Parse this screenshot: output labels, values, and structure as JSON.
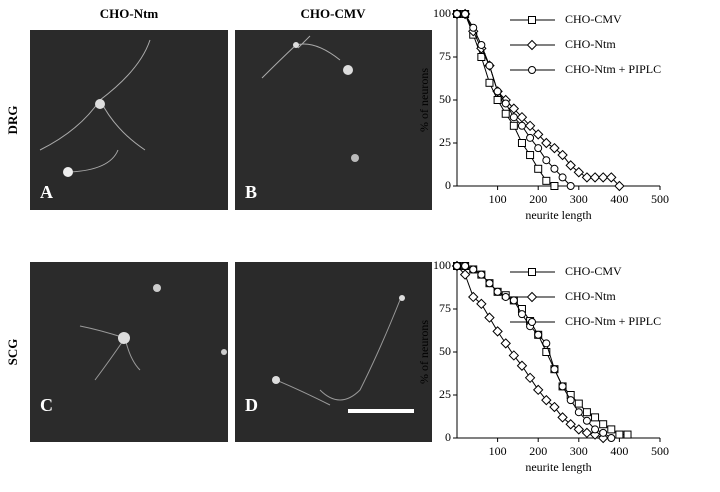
{
  "figure": {
    "column_labels": [
      "CHO-Ntm",
      "CHO-CMV"
    ],
    "row_labels": [
      "DRG",
      "SCG"
    ],
    "panels": [
      {
        "label": "A"
      },
      {
        "label": "B"
      },
      {
        "label": "C"
      },
      {
        "label": "D"
      }
    ]
  },
  "chart_data": [
    {
      "type": "line",
      "xlabel": "neurite length",
      "ylabel": "% of neurons",
      "x": [
        0,
        20,
        40,
        60,
        80,
        100,
        120,
        140,
        160,
        180,
        200,
        220,
        240,
        260,
        280,
        300,
        320,
        340,
        360,
        380,
        400,
        420
      ],
      "xlim": [
        0,
        500
      ],
      "ylim": [
        0,
        100
      ],
      "xticks": [
        100,
        200,
        300,
        400,
        500
      ],
      "yticks": [
        0,
        25,
        50,
        75,
        100
      ],
      "series": [
        {
          "name": "CHO-CMV",
          "color": "#000000",
          "marker": "square",
          "values": [
            100,
            100,
            88,
            75,
            60,
            50,
            42,
            35,
            25,
            18,
            10,
            3,
            0,
            null,
            null,
            null,
            null,
            null,
            null,
            null,
            null,
            null
          ]
        },
        {
          "name": "CHO-Ntm",
          "color": "#000000",
          "marker": "diamond",
          "values": [
            100,
            100,
            90,
            80,
            70,
            55,
            50,
            45,
            40,
            35,
            30,
            25,
            22,
            18,
            12,
            8,
            5,
            5,
            5,
            5,
            0,
            null
          ]
        },
        {
          "name": "CHO-Ntm + PIPLC",
          "color": "#000000",
          "marker": "circle",
          "values": [
            100,
            100,
            92,
            82,
            70,
            55,
            48,
            40,
            35,
            28,
            22,
            15,
            10,
            5,
            0,
            null,
            null,
            null,
            null,
            null,
            null,
            null
          ]
        }
      ]
    },
    {
      "type": "line",
      "xlabel": "neurite length",
      "ylabel": "% of neurons",
      "x": [
        0,
        20,
        40,
        60,
        80,
        100,
        120,
        140,
        160,
        180,
        200,
        220,
        240,
        260,
        280,
        300,
        320,
        340,
        360,
        380,
        400,
        420
      ],
      "xlim": [
        0,
        500
      ],
      "ylim": [
        0,
        100
      ],
      "xticks": [
        100,
        200,
        300,
        400,
        500
      ],
      "yticks": [
        0,
        25,
        50,
        75,
        100
      ],
      "series": [
        {
          "name": "CHO-CMV",
          "color": "#000000",
          "marker": "square",
          "values": [
            100,
            100,
            98,
            95,
            90,
            85,
            83,
            80,
            75,
            68,
            60,
            50,
            40,
            30,
            25,
            20,
            15,
            12,
            8,
            5,
            2,
            2
          ]
        },
        {
          "name": "CHO-Ntm",
          "color": "#000000",
          "marker": "diamond",
          "values": [
            100,
            95,
            82,
            78,
            70,
            62,
            55,
            48,
            42,
            35,
            28,
            22,
            18,
            12,
            8,
            5,
            3,
            2,
            0,
            null,
            null,
            null
          ]
        },
        {
          "name": "CHO-Ntm + PIPLC",
          "color": "#000000",
          "marker": "circle",
          "values": [
            100,
            100,
            98,
            95,
            90,
            85,
            82,
            80,
            72,
            65,
            60,
            55,
            40,
            30,
            22,
            15,
            10,
            5,
            3,
            0,
            null,
            null
          ]
        }
      ]
    }
  ]
}
